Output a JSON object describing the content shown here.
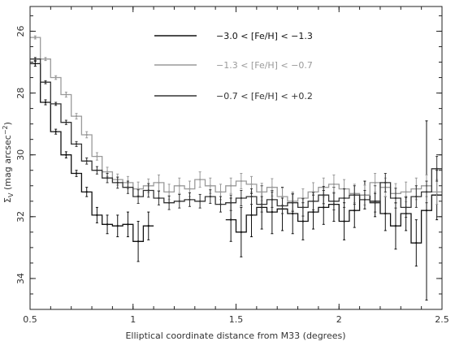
{
  "chart_data": {
    "type": "line",
    "title": "",
    "xlabel": "Elliptical coordinate distance from M33 (degrees)",
    "ylabel_symbol": "Σ",
    "ylabel_sub": "V",
    "ylabel_text": " (mag arcsec",
    "ylabel_sup": "−2",
    "ylabel_close": ")",
    "xlim": [
      0.5,
      2.5
    ],
    "ylim": [
      35.0,
      25.2
    ],
    "y_inverted": true,
    "x_ticks": [
      0.5,
      1,
      1.5,
      2,
      2.5
    ],
    "x_tick_labels": [
      "0.5",
      "1",
      "1.5",
      "2",
      "2.5"
    ],
    "y_ticks": [
      26,
      28,
      30,
      32,
      34
    ],
    "y_tick_labels": [
      "26",
      "28",
      "30",
      "32",
      "34"
    ],
    "grid": false,
    "legend_position": "top-center",
    "step_style": "histogram",
    "series": [
      {
        "name": "−3.0 < [Fe/H] < −1.3",
        "color": "#111111",
        "x_start": [
          0.5,
          0.55,
          0.6,
          0.65,
          0.7,
          0.75,
          0.8,
          0.85,
          0.9,
          0.95,
          1.0,
          1.05,
          1.45,
          1.5,
          1.55,
          1.6,
          1.65,
          1.7,
          1.75,
          1.8,
          1.85,
          1.9,
          1.95,
          2.0,
          2.05,
          2.1,
          2.15,
          2.2,
          2.25,
          2.3,
          2.35,
          2.4,
          2.45
        ],
        "x_end": [
          0.55,
          0.6,
          0.65,
          0.7,
          0.75,
          0.8,
          0.85,
          0.9,
          0.95,
          1.0,
          1.05,
          1.1,
          1.5,
          1.55,
          1.6,
          1.65,
          1.7,
          1.75,
          1.8,
          1.85,
          1.9,
          1.95,
          2.0,
          2.05,
          2.1,
          2.15,
          2.2,
          2.25,
          2.3,
          2.35,
          2.4,
          2.45,
          2.5
        ],
        "y": [
          27.05,
          28.3,
          29.25,
          30.0,
          30.6,
          31.2,
          31.95,
          32.25,
          32.3,
          32.25,
          32.8,
          32.3,
          32.1,
          32.5,
          31.95,
          31.7,
          31.85,
          31.75,
          31.9,
          32.15,
          31.85,
          31.7,
          31.6,
          32.15,
          31.8,
          31.3,
          31.5,
          31.9,
          32.3,
          31.9,
          32.85,
          31.8,
          31.3
        ],
        "err": [
          0.08,
          0.08,
          0.08,
          0.1,
          0.1,
          0.15,
          0.25,
          0.3,
          0.35,
          0.4,
          0.65,
          0.45,
          0.7,
          0.8,
          0.7,
          0.7,
          0.7,
          0.7,
          0.65,
          0.6,
          0.55,
          0.55,
          0.55,
          0.6,
          0.55,
          0.45,
          0.5,
          0.55,
          0.75,
          0.55,
          0.75,
          2.9,
          0.8
        ]
      },
      {
        "name": "−1.3 < [Fe/H] < −0.7",
        "color": "#9a9a9a",
        "x_start": [
          0.5,
          0.55,
          0.6,
          0.65,
          0.7,
          0.75,
          0.8,
          0.85,
          0.9,
          0.95,
          1.0,
          1.05,
          1.1,
          1.15,
          1.2,
          1.25,
          1.3,
          1.35,
          1.4,
          1.45,
          1.5,
          1.55,
          1.6,
          1.65,
          1.7,
          1.75,
          1.8,
          1.85,
          1.9,
          1.95,
          2.0,
          2.05,
          2.1,
          2.15,
          2.2,
          2.25,
          2.3,
          2.35,
          2.4,
          2.45
        ],
        "x_end": [
          0.55,
          0.6,
          0.65,
          0.7,
          0.75,
          0.8,
          0.85,
          0.9,
          0.95,
          1.0,
          1.05,
          1.1,
          1.15,
          1.2,
          1.25,
          1.3,
          1.35,
          1.4,
          1.45,
          1.5,
          1.55,
          1.6,
          1.65,
          1.7,
          1.75,
          1.8,
          1.85,
          1.9,
          1.95,
          2.0,
          2.05,
          2.1,
          2.15,
          2.2,
          2.25,
          2.3,
          2.35,
          2.4,
          2.45,
          2.5
        ],
        "y": [
          26.2,
          26.9,
          27.5,
          28.05,
          28.75,
          29.35,
          30.05,
          30.55,
          30.8,
          30.9,
          31.1,
          31.0,
          30.9,
          31.2,
          31.0,
          31.1,
          30.8,
          31.0,
          31.2,
          31.0,
          30.85,
          30.95,
          31.2,
          31.05,
          31.35,
          31.5,
          31.4,
          31.2,
          31.05,
          30.95,
          31.1,
          31.25,
          31.3,
          30.9,
          31.05,
          31.25,
          31.2,
          31.1,
          31.0,
          31.2
        ],
        "err": [
          0.05,
          0.05,
          0.06,
          0.08,
          0.09,
          0.1,
          0.12,
          0.15,
          0.18,
          0.2,
          0.22,
          0.22,
          0.25,
          0.25,
          0.25,
          0.25,
          0.25,
          0.25,
          0.25,
          0.25,
          0.25,
          0.25,
          0.28,
          0.28,
          0.28,
          0.3,
          0.3,
          0.3,
          0.3,
          0.3,
          0.3,
          0.3,
          0.32,
          0.3,
          0.3,
          0.32,
          0.32,
          0.35,
          0.35,
          0.4
        ]
      },
      {
        "name": "−0.7 < [Fe/H] < +0.2",
        "color": "#333333",
        "x_start": [
          0.5,
          0.55,
          0.6,
          0.65,
          0.7,
          0.75,
          0.8,
          0.85,
          0.9,
          0.95,
          1.0,
          1.05,
          1.1,
          1.15,
          1.2,
          1.25,
          1.3,
          1.35,
          1.4,
          1.45,
          1.5,
          1.55,
          1.6,
          1.65,
          1.7,
          1.75,
          1.8,
          1.85,
          1.9,
          1.95,
          2.0,
          2.05,
          2.1,
          2.15,
          2.2,
          2.25,
          2.3,
          2.35,
          2.4,
          2.45
        ],
        "x_end": [
          0.55,
          0.6,
          0.65,
          0.7,
          0.75,
          0.8,
          0.85,
          0.9,
          0.95,
          1.0,
          1.05,
          1.1,
          1.15,
          1.2,
          1.25,
          1.3,
          1.35,
          1.4,
          1.45,
          1.5,
          1.55,
          1.6,
          1.65,
          1.7,
          1.75,
          1.8,
          1.85,
          1.9,
          1.95,
          2.0,
          2.05,
          2.1,
          2.15,
          2.2,
          2.25,
          2.3,
          2.35,
          2.4,
          2.45,
          2.5
        ],
        "y": [
          26.9,
          27.65,
          28.35,
          28.95,
          29.65,
          30.2,
          30.5,
          30.75,
          30.9,
          31.05,
          31.35,
          31.15,
          31.4,
          31.55,
          31.5,
          31.45,
          31.5,
          31.35,
          31.6,
          31.55,
          31.4,
          31.35,
          31.6,
          31.45,
          31.65,
          31.55,
          31.7,
          31.5,
          31.3,
          31.5,
          31.4,
          31.3,
          31.45,
          31.55,
          30.9,
          31.4,
          31.7,
          31.35,
          31.2,
          30.45
        ],
        "err": [
          0.05,
          0.05,
          0.05,
          0.07,
          0.08,
          0.1,
          0.12,
          0.15,
          0.18,
          0.2,
          0.22,
          0.22,
          0.22,
          0.22,
          0.22,
          0.22,
          0.22,
          0.22,
          0.25,
          0.25,
          0.25,
          0.25,
          0.25,
          0.25,
          0.25,
          0.28,
          0.28,
          0.28,
          0.28,
          0.28,
          0.3,
          0.3,
          0.3,
          0.3,
          0.3,
          0.32,
          0.32,
          0.35,
          0.35,
          0.4
        ]
      }
    ]
  }
}
